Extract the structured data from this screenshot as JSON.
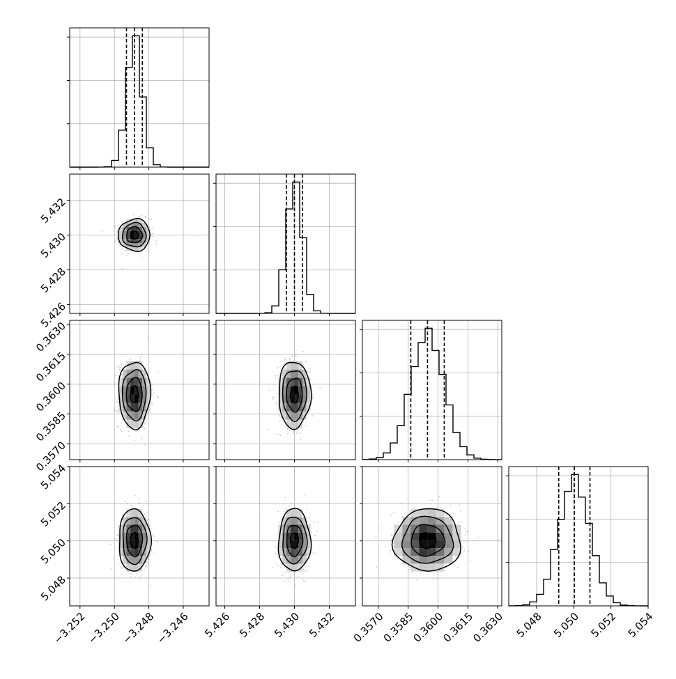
{
  "chart_data": {
    "type": "corner",
    "title": "",
    "grid": true,
    "params": [
      {
        "median": -3.24884,
        "q16": -3.2493,
        "q84": -3.24838,
        "sigma": 0.00046,
        "range": [
          -3.2526,
          -3.2445
        ],
        "ticks": [
          -3.252,
          -3.25,
          -3.248,
          -3.246
        ],
        "tick_labels": [
          "−3.252",
          "−3.250",
          "−3.248",
          "−3.246"
        ]
      },
      {
        "median": 5.43,
        "q16": 5.42954,
        "q84": 5.43046,
        "sigma": 0.00046,
        "range": [
          5.4255,
          5.4335
        ],
        "ticks": [
          5.426,
          5.428,
          5.43,
          5.432
        ],
        "tick_labels": [
          "5.426",
          "5.428",
          "5.430",
          "5.432"
        ]
      },
      {
        "median": 0.35947,
        "q16": 0.35863,
        "q84": 0.36031,
        "sigma": 0.00084,
        "range": [
          0.3562,
          0.3632
        ],
        "ticks": [
          0.357,
          0.3585,
          0.36,
          0.3615,
          0.363
        ],
        "tick_labels": [
          "0.3570",
          "0.3585",
          "0.3600",
          "0.3615",
          "0.3630"
        ]
      },
      {
        "median": 5.05003,
        "q16": 5.04919,
        "q84": 5.05087,
        "sigma": 0.00084,
        "range": [
          5.0465,
          5.054
        ],
        "ticks": [
          5.048,
          5.05,
          5.052,
          5.054
        ],
        "tick_labels": [
          "5.048",
          "5.050",
          "5.052",
          "5.054"
        ]
      }
    ],
    "colors": {
      "line": "#000000",
      "grid": "#b0b0b0",
      "scatter": "#9a9a9a"
    }
  }
}
